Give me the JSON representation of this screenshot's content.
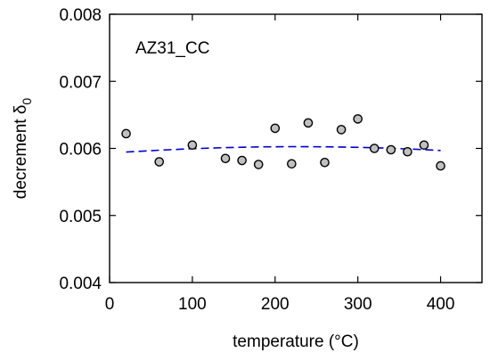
{
  "chart_data": {
    "type": "scatter",
    "annotation": "AZ31_CC",
    "xlabel": "temperature (°C)",
    "ylabel_main": "decrement δ",
    "ylabel_sub": "0",
    "xlim": [
      0,
      450
    ],
    "ylim": [
      0.004,
      0.008
    ],
    "xticks": [
      0,
      100,
      200,
      300,
      400
    ],
    "xtick_labels": [
      "0",
      "100",
      "200",
      "300",
      "400"
    ],
    "yticks": [
      0.004,
      0.005,
      0.006,
      0.007,
      0.008
    ],
    "ytick_labels": [
      "0.004",
      "0.005",
      "0.006",
      "0.007",
      "0.008"
    ],
    "grid": false,
    "series": [
      {
        "kind": "points",
        "color": "#c0c0c0",
        "edge_color": "#000000",
        "x": [
          20,
          60,
          100,
          140,
          160,
          180,
          200,
          220,
          240,
          260,
          280,
          300,
          320,
          340,
          360,
          380,
          400
        ],
        "y": [
          0.00622,
          0.0058,
          0.00605,
          0.00585,
          0.00582,
          0.00576,
          0.0063,
          0.00577,
          0.00638,
          0.00579,
          0.00628,
          0.00644,
          0.006,
          0.00598,
          0.00595,
          0.00605,
          0.00574
        ]
      },
      {
        "kind": "fit-line",
        "style": "dashed",
        "color": "#0000cc",
        "x": [
          20,
          60,
          100,
          140,
          180,
          220,
          260,
          300,
          340,
          380,
          400
        ],
        "y": [
          0.005945,
          0.005974,
          0.005996,
          0.006012,
          0.006022,
          0.006026,
          0.006024,
          0.006016,
          0.006002,
          0.005982,
          0.00597
        ]
      }
    ]
  }
}
